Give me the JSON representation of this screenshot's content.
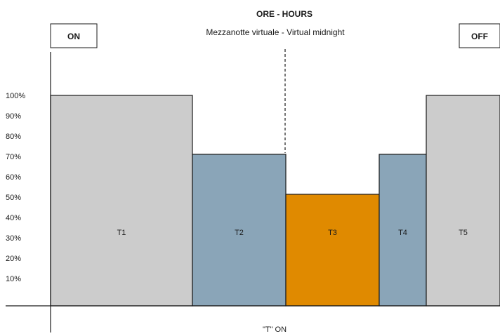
{
  "chart_data": {
    "type": "bar",
    "title": "ORE - HOURS",
    "subtitle": "Mezzanotte virtuale - Virtual midnight",
    "xlabel": "\"T\" ON",
    "ylabel": "",
    "ylim": [
      0,
      100
    ],
    "y_ticks": [
      "100%",
      "90%",
      "80%",
      "70%",
      "60%",
      "50%",
      "40%",
      "30%",
      "20%",
      "10%"
    ],
    "y_tick_values": [
      100,
      90,
      80,
      70,
      60,
      50,
      40,
      30,
      20,
      10
    ],
    "grid": false,
    "categories": [
      "T1",
      "T2",
      "T3",
      "T4",
      "T5"
    ],
    "values": [
      100,
      72,
      53,
      72,
      100
    ],
    "colors": [
      "#cccccc",
      "#8aa5b8",
      "#e08a00",
      "#8aa5b8",
      "#cccccc"
    ],
    "on_label": "ON",
    "off_label": "OFF"
  }
}
